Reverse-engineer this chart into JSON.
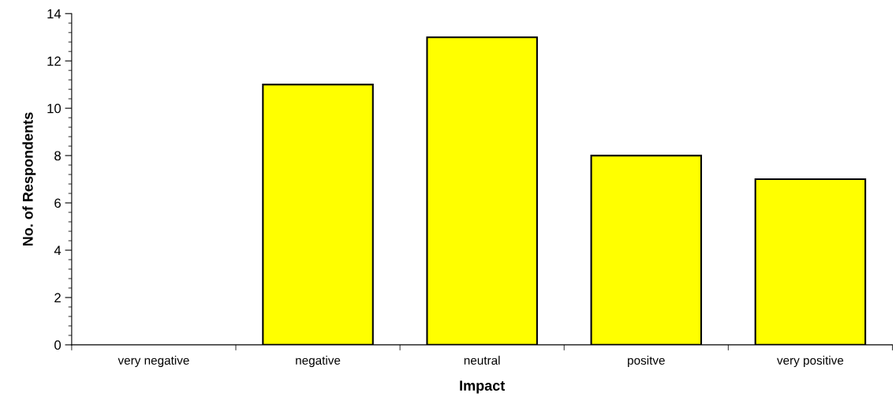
{
  "chart_data": {
    "type": "bar",
    "xlabel": "Impact",
    "ylabel": "No. of Respondents",
    "categories": [
      "very negative",
      "negative",
      "neutral",
      "positve",
      "very positive"
    ],
    "values": [
      0,
      11,
      13,
      8,
      7
    ],
    "color": "#ffff00",
    "ylim": [
      0,
      14
    ],
    "yticks": [
      0,
      {
        "value": 0.4,
        "label": null
      },
      {
        "value": 0.8,
        "label": null
      },
      {
        "value": 1.2,
        "label": null
      },
      {
        "value": 1.6,
        "label": null
      },
      2,
      {
        "value": 2.4,
        "label": null
      },
      {
        "value": 2.8,
        "label": null
      },
      {
        "value": 3.2,
        "label": null
      },
      {
        "value": 3.6,
        "label": null
      },
      4,
      {
        "value": 4.4,
        "label": null
      },
      {
        "value": 4.8,
        "label": null
      },
      {
        "value": 5.2,
        "label": null
      },
      {
        "value": 5.6,
        "label": null
      },
      6,
      {
        "value": 6.4,
        "label": null
      },
      {
        "value": 6.8,
        "label": null
      },
      {
        "value": 7.2,
        "label": null
      },
      {
        "value": 7.6,
        "label": null
      },
      8,
      {
        "value": 8.4,
        "label": null
      },
      {
        "value": 8.8,
        "label": null
      },
      {
        "value": 9.2,
        "label": null
      },
      {
        "value": 9.6,
        "label": null
      },
      10,
      {
        "value": 10.4,
        "label": null
      },
      {
        "value": 10.8,
        "label": null
      },
      {
        "value": 11.2,
        "label": null
      },
      {
        "value": 11.6,
        "label": null
      },
      12,
      {
        "value": 12.4,
        "label": null
      },
      {
        "value": 12.8,
        "label": null
      },
      {
        "value": 13.2,
        "label": null
      },
      {
        "value": 13.6,
        "label": null
      },
      14
    ],
    "grid": false,
    "legend": false
  }
}
